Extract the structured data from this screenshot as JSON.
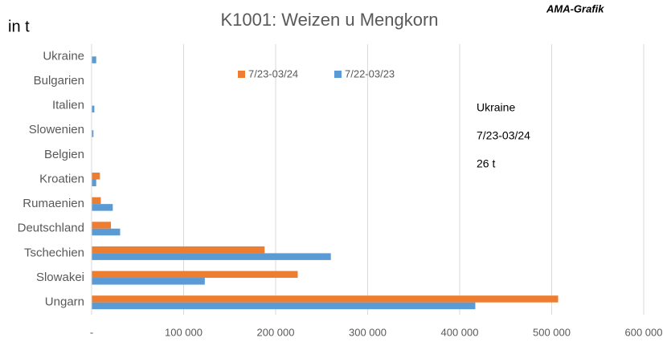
{
  "chart_data": {
    "type": "hbar",
    "title": "K1001: Weizen u Mengkorn",
    "unit_label": "in t",
    "source": "AMA-Grafik",
    "annotations": [
      "Ukraine",
      "7/23-03/24",
      "26 t"
    ],
    "categories": [
      "Ukraine",
      "Bulgarien",
      "Italien",
      "Slowenien",
      "Belgien",
      "Kroatien",
      "Rumaenien",
      "Deutschland",
      "Tschechien",
      "Slowakei",
      "Ungarn"
    ],
    "series": [
      {
        "name": "7/23-03/24",
        "color": "#ed7d31",
        "values": [
          26,
          0,
          0,
          0,
          0,
          9000,
          10000,
          21000,
          188000,
          224000,
          507000
        ]
      },
      {
        "name": "7/22-03/23",
        "color": "#5b9bd5",
        "values": [
          5000,
          0,
          3000,
          2000,
          0,
          5000,
          23000,
          31000,
          260000,
          123000,
          417000
        ]
      }
    ],
    "xlim": [
      0,
      600000
    ],
    "xticks": [
      {
        "value": 0,
        "label": "-"
      },
      {
        "value": 100000,
        "label": "100 000"
      },
      {
        "value": 200000,
        "label": "200 000"
      },
      {
        "value": 300000,
        "label": "300 000"
      },
      {
        "value": 400000,
        "label": "400 000"
      },
      {
        "value": 500000,
        "label": "500 000"
      },
      {
        "value": 600000,
        "label": "600 000"
      }
    ],
    "grid": true,
    "legend": "top"
  }
}
